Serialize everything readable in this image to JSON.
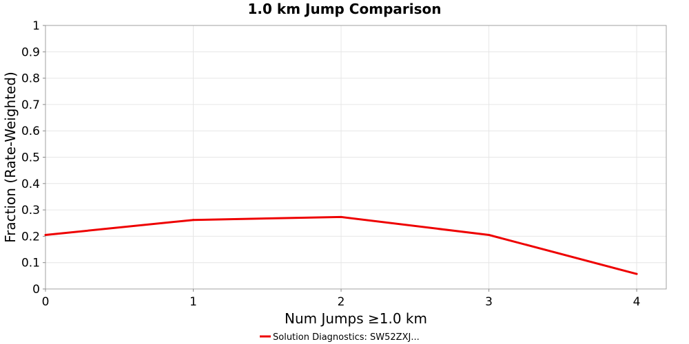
{
  "chart_data": {
    "type": "line",
    "title": "1.0 km Jump Comparison",
    "xlabel": "Num Jumps ≥1.0 km",
    "ylabel": "Fraction (Rate-Weighted)",
    "xlim": [
      0,
      4.2
    ],
    "ylim": [
      0,
      1
    ],
    "x_ticks": [
      "0",
      "1",
      "2",
      "3",
      "4"
    ],
    "y_ticks": [
      "0",
      "0.1",
      "0.2",
      "0.3",
      "0.4",
      "0.5",
      "0.6",
      "0.7",
      "0.8",
      "0.9",
      "1"
    ],
    "grid": true,
    "legend_position": "bottom-center",
    "series": [
      {
        "name": "Solution Diagnostics: SW52ZXJ...",
        "color": "#ee0000",
        "x": [
          0,
          1,
          2,
          3,
          4
        ],
        "y": [
          0.205,
          0.262,
          0.273,
          0.205,
          0.057
        ]
      }
    ]
  }
}
